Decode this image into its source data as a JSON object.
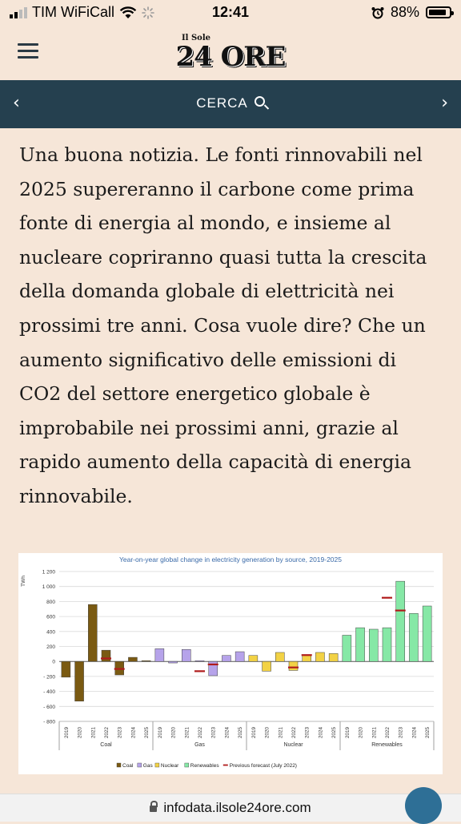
{
  "status_bar": {
    "carrier": "TIM WiFiCall",
    "time": "12:41",
    "battery": "88%",
    "battery_level": 0.88,
    "icons": [
      "signal-icon",
      "wifi-icon",
      "loading-icon",
      "alarm-icon",
      "battery-icon"
    ]
  },
  "header": {
    "logo_small": "Il Sole",
    "logo_big": "24 ORE",
    "menu_icon": "hamburger-menu-icon"
  },
  "nav": {
    "search_label": "CERCA",
    "prev_icon": "chevron-left-icon",
    "next_icon": "chevron-right-icon",
    "search_icon": "search-icon"
  },
  "article": {
    "text": "Una buona notizia. Le fonti rinnovabili nel 2025 supereranno il carbone come prima fonte di energia al mondo, e insieme al nucleare copriranno quasi tutta la crescita della domanda globale di elettricità nei prossimi tre anni.  Cosa vuole dire? Che un aumento significativo delle emissioni di CO2 del settore energetico globale è improbabile nei prossimi anni, grazie al rapido aumento della capacità di energia rinnovabile."
  },
  "chart_data": {
    "type": "bar",
    "title": "Year-on-year global change in electricity generation by source, 2019-2025",
    "ylabel": "TWh",
    "ylim": [
      -800,
      1200
    ],
    "yticks": [
      1200,
      1000,
      800,
      600,
      400,
      200,
      0,
      -200,
      -400,
      -600,
      -800
    ],
    "ytick_labels": [
      "1 200",
      "1 000",
      "800",
      "600",
      "400",
      "200",
      "0",
      "- 200",
      "- 400",
      "- 600",
      "- 800"
    ],
    "years": [
      "2019",
      "2020",
      "2021",
      "2022",
      "2023",
      "2024",
      "2025"
    ],
    "grid": true,
    "legend_position": "bottom",
    "series": [
      {
        "name": "Coal",
        "color": "#7a5a12",
        "values": [
          -210,
          -530,
          760,
          150,
          -180,
          55,
          10
        ]
      },
      {
        "name": "Gas",
        "color": "#b6a3ea",
        "values": [
          170,
          -20,
          160,
          10,
          -190,
          80,
          130
        ]
      },
      {
        "name": "Nuclear",
        "color": "#f2d245",
        "values": [
          80,
          -130,
          120,
          -120,
          80,
          120,
          105
        ]
      },
      {
        "name": "Renewables",
        "color": "#86e8a6",
        "values": [
          350,
          450,
          430,
          450,
          1070,
          640,
          740
        ]
      }
    ],
    "previous_forecast": {
      "name": "Previous forecast (July 2022)",
      "color": "#b01c1c",
      "points": [
        {
          "series": "Coal",
          "year": "2022",
          "value": 40
        },
        {
          "series": "Coal",
          "year": "2023",
          "value": -100
        },
        {
          "series": "Gas",
          "year": "2022",
          "value": -130
        },
        {
          "series": "Gas",
          "year": "2023",
          "value": -40
        },
        {
          "series": "Nuclear",
          "year": "2022",
          "value": -80
        },
        {
          "series": "Nuclear",
          "year": "2023",
          "value": 85
        },
        {
          "series": "Renewables",
          "year": "2022",
          "value": 850
        },
        {
          "series": "Renewables",
          "year": "2023",
          "value": 680
        }
      ]
    }
  },
  "browser": {
    "url": "infodata.ilsole24ore.com",
    "lock_icon": "lock-icon"
  }
}
